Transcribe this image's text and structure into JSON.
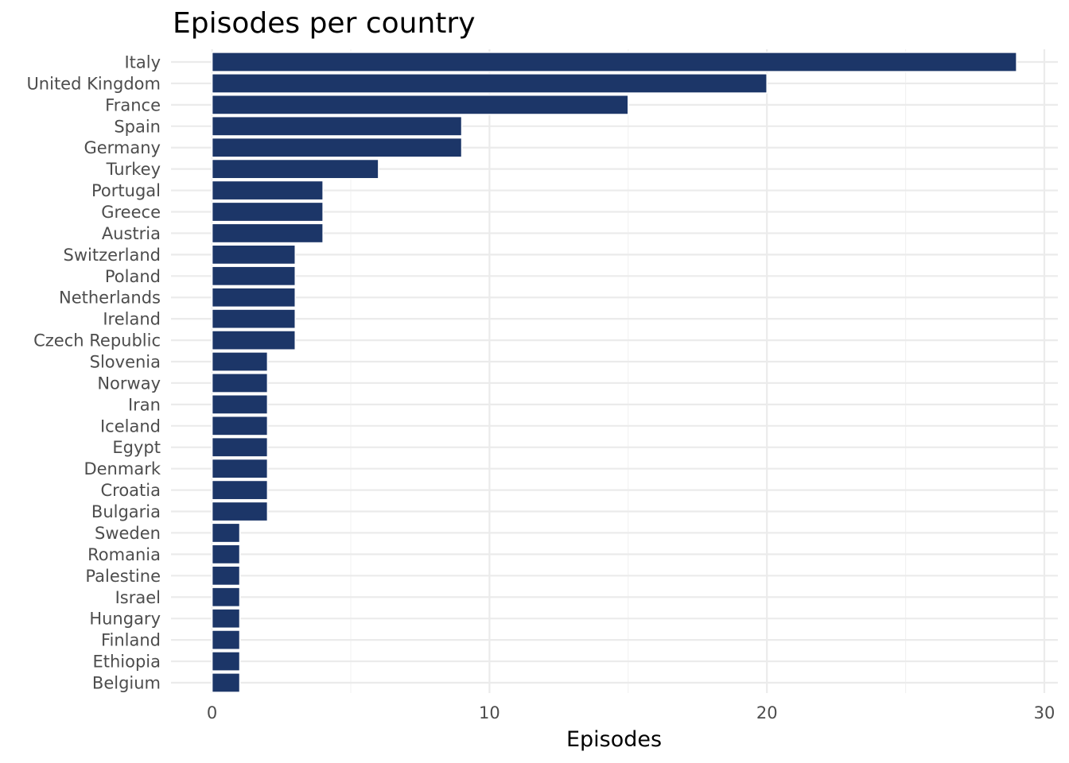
{
  "colors": {
    "bar": "#1c3668",
    "background": "#ffffff"
  },
  "chart_data": {
    "type": "bar",
    "orientation": "horizontal",
    "title": "Episodes per country",
    "xlabel": "Episodes",
    "ylabel": "",
    "xlim": [
      0,
      30
    ],
    "x_ticks": [
      0,
      10,
      20,
      30
    ],
    "grid": true,
    "legend": "none",
    "categories": [
      "Italy",
      "United Kingdom",
      "France",
      "Spain",
      "Germany",
      "Turkey",
      "Portugal",
      "Greece",
      "Austria",
      "Switzerland",
      "Poland",
      "Netherlands",
      "Ireland",
      "Czech Republic",
      "Slovenia",
      "Norway",
      "Iran",
      "Iceland",
      "Egypt",
      "Denmark",
      "Croatia",
      "Bulgaria",
      "Sweden",
      "Romania",
      "Palestine",
      "Israel",
      "Hungary",
      "Finland",
      "Ethiopia",
      "Belgium"
    ],
    "values": [
      29,
      20,
      15,
      9,
      9,
      6,
      4,
      4,
      4,
      3,
      3,
      3,
      3,
      3,
      2,
      2,
      2,
      2,
      2,
      2,
      2,
      2,
      1,
      1,
      1,
      1,
      1,
      1,
      1,
      1
    ]
  }
}
